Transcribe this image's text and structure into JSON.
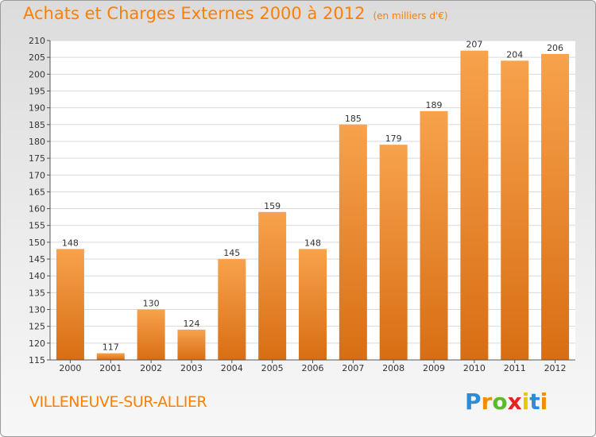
{
  "header": {
    "title": "Achats et Charges Externes 2000 à 2012",
    "unit": "(en milliers d'€)"
  },
  "footer": {
    "commune": "VILLENEUVE-SUR-ALLIER"
  },
  "logo": {
    "letters": [
      {
        "ch": "P",
        "color": "#2e8bd8"
      },
      {
        "ch": "r",
        "color": "#f28c00"
      },
      {
        "ch": "o",
        "color": "#5cb82e"
      },
      {
        "ch": "x",
        "color": "#e52421"
      },
      {
        "ch": "i",
        "color": "#f2c300"
      },
      {
        "ch": "t",
        "color": "#2e8bd8"
      },
      {
        "ch": "i",
        "color": "#f28c00"
      }
    ]
  },
  "colors": {
    "accent": "#ff7f00",
    "bar_light": "#f7a24c",
    "bar_dark": "#d86e14"
  },
  "chart_data": {
    "type": "bar",
    "categories": [
      "2000",
      "2001",
      "2002",
      "2003",
      "2004",
      "2005",
      "2006",
      "2007",
      "2008",
      "2009",
      "2010",
      "2011",
      "2012"
    ],
    "values": [
      148,
      117,
      130,
      124,
      145,
      159,
      148,
      185,
      179,
      189,
      207,
      204,
      206
    ],
    "ylim": [
      115,
      210
    ],
    "yticks": [
      115,
      120,
      125,
      130,
      135,
      140,
      145,
      150,
      155,
      160,
      165,
      170,
      175,
      180,
      185,
      190,
      195,
      200,
      205,
      210
    ],
    "grid": true,
    "legend": "none",
    "title": "Achats et Charges Externes 2000 à 2012",
    "xlabel": "",
    "ylabel": ""
  }
}
